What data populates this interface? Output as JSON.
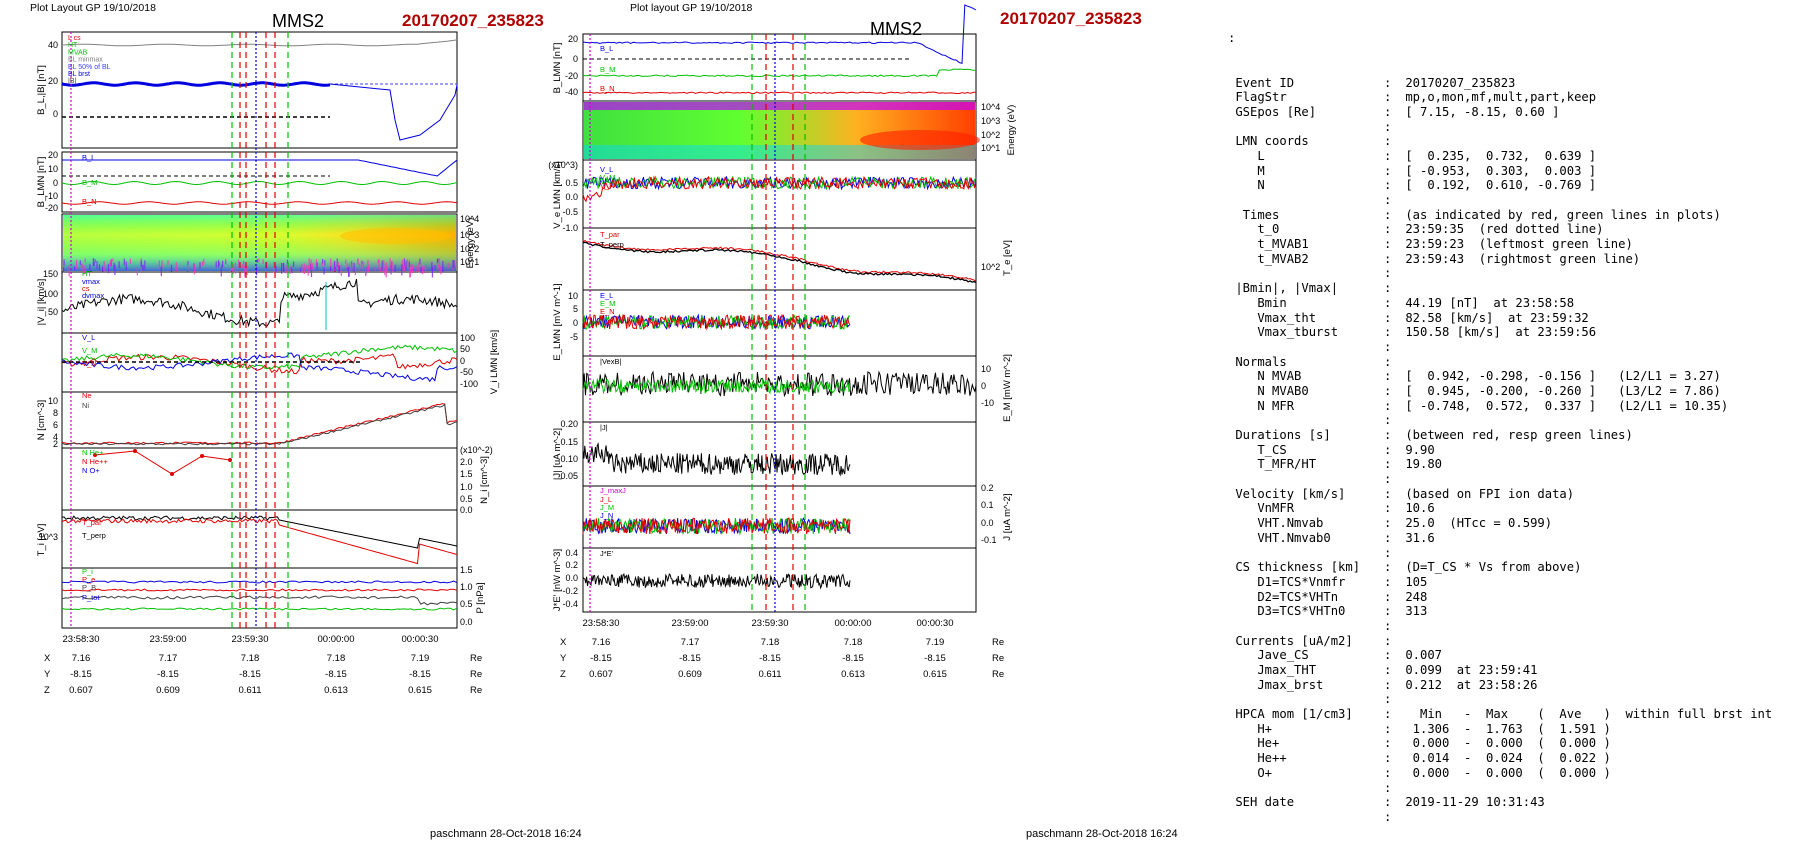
{
  "left_panel": {
    "header": "Plot Layout GP 19/10/2018",
    "title": "MMS2",
    "event": "20170207_235823",
    "footer": "paschmann 28-Oct-2018 16:24",
    "time_ticks": [
      "23:58:30",
      "23:59:00",
      "23:59:30",
      "00:00:00",
      "00:00:30"
    ],
    "ylabels": [
      "B_L,|B| [nT]",
      "B_LMN [nT]",
      "Energy (eV)",
      "|V_i| [km/s]",
      "V_i LMN [km/s]",
      "N [cm^-3]",
      "N_i [cm^-3]",
      "T_i [eV]",
      "P [nPa]"
    ],
    "legends": {
      "b": [
        "L cs",
        "HT",
        "MVAB",
        "BL minmax",
        "BL 50% of BL",
        "BL brst",
        "|B|"
      ],
      "blmn": [
        "B_L",
        "B_M",
        "B_N"
      ],
      "v": [
        "HT",
        "vmax",
        "cs",
        "dvmax"
      ],
      "vlmn": [
        "V_L",
        "V_M",
        "V_N"
      ],
      "n": [
        "Ne",
        "Ni"
      ],
      "nh": [
        "N He+",
        "N He++",
        "N O+"
      ],
      "t": [
        "T_par",
        "T_perp"
      ],
      "p": [
        "P_i",
        "P_e",
        "P_B",
        "P_tot"
      ]
    },
    "ticks": {
      "b": [
        "40",
        "20",
        "0"
      ],
      "blmn": [
        "20",
        "10",
        "0",
        "-10",
        "-20"
      ],
      "e": [
        "10^4",
        "10^3",
        "10^2",
        "10^1"
      ],
      "v": [
        "150",
        "100",
        "50"
      ],
      "vlmn": [
        "100",
        "50",
        "0",
        "-50",
        "-100"
      ],
      "n": [
        "10",
        "8",
        "6",
        "4",
        "2"
      ],
      "nh": [
        "(x10^-2)",
        "2.0",
        "1.5",
        "1.0",
        "0.5",
        "0.0"
      ],
      "t": [
        "10^3"
      ],
      "p": [
        "1.5",
        "1.0",
        "0.5",
        "0.0"
      ]
    },
    "position_table": {
      "X": [
        "7.16",
        "7.17",
        "7.18",
        "7.18",
        "7.19"
      ],
      "Y": [
        "-8.15",
        "-8.15",
        "-8.15",
        "-8.15",
        "-8.15"
      ],
      "Z": [
        "0.607",
        "0.609",
        "0.611",
        "0.613",
        "0.615"
      ],
      "unit": "Re"
    }
  },
  "right_panel": {
    "header": "Plot layout GP 19/10/2018",
    "title": "MMS2",
    "event": "20170207_235823",
    "footer": "paschmann 28-Oct-2018 16:24",
    "time_ticks": [
      "23:58:30",
      "23:59:00",
      "23:59:30",
      "00:00:00",
      "00:00:30"
    ],
    "ylabels": [
      "B_LMN [nT]",
      "Energy (eV)",
      "V_e LMN [km/s]",
      "T_e [eV]",
      "E_LMN [mV m^-1]",
      "E_M [mW m^-2]",
      "|J| [uA m^-2]",
      "J [uA m^-2]",
      "J*E' [nW m^-3]"
    ],
    "legends": {
      "b": [
        "B_L",
        "B_M",
        "B_N"
      ],
      "ve": [
        "V_L",
        "V_M",
        "V_N"
      ],
      "te": [
        "T_par",
        "T_perp"
      ],
      "e": [
        "E_L",
        "E_M",
        "E_N"
      ],
      "vexb": [
        "|VexB|"
      ],
      "j": [
        "|J|"
      ],
      "jlmn": [
        "J_maxJ",
        "J_L",
        "J_M",
        "J_N"
      ],
      "je": [
        "J*E'"
      ]
    },
    "ticks": {
      "b": [
        "20",
        "0",
        "-20",
        "-40"
      ],
      "e": [
        "10^4",
        "10^3",
        "10^2",
        "10^1"
      ],
      "ve": [
        "(x10^3)",
        "0.5",
        "0.0",
        "-0.5",
        "-1.0"
      ],
      "te": [
        "10^2"
      ],
      "el": [
        "10",
        "5",
        "0",
        "-5"
      ],
      "em": [
        "10",
        "0",
        "-10"
      ],
      "j": [
        "0.20",
        "0.15",
        "0.10",
        "0.05"
      ],
      "jlmn": [
        "0.2",
        "0.1",
        "0.0",
        "-0.1"
      ],
      "je": [
        "0.4",
        "0.2",
        "0.0",
        "-0.2",
        "-0.4"
      ]
    },
    "position_table": {
      "X": [
        "7.16",
        "7.17",
        "7.18",
        "7.18",
        "7.19"
      ],
      "Y": [
        "-8.15",
        "-8.15",
        "-8.15",
        "-8.15",
        "-8.15"
      ],
      "Z": [
        "0.607",
        "0.609",
        "0.611",
        "0.613",
        "0.615"
      ],
      "unit": "Re"
    }
  },
  "summary": {
    "top_mark": ":",
    "rows": [
      {
        "k": "Event ID",
        "v": "20170207_235823"
      },
      {
        "k": "FlagStr",
        "v": "mp,o,mon,mf,mult,part,keep"
      },
      {
        "k": "GSEpos [Re]",
        "v": "[ 7.15, -8.15, 0.60 ]"
      },
      {
        "k": "",
        "v": ""
      },
      {
        "k": "LMN coords",
        "v": ""
      },
      {
        "k": "   L",
        "v": "[  0.235,  0.732,  0.639 ]"
      },
      {
        "k": "   M",
        "v": "[ -0.953,  0.303,  0.003 ]"
      },
      {
        "k": "   N",
        "v": "[  0.192,  0.610, -0.769 ]"
      },
      {
        "k": "",
        "v": ""
      },
      {
        "k": " Times",
        "v": "(as indicated by red, green lines in plots)"
      },
      {
        "k": "   t_0",
        "v": "23:59:35  (red dotted line)"
      },
      {
        "k": "   t_MVAB1",
        "v": "23:59:23  (leftmost green line)"
      },
      {
        "k": "   t_MVAB2",
        "v": "23:59:43  (rightmost green line)"
      },
      {
        "k": "",
        "v": ""
      },
      {
        "k": "|Bmin|, |Vmax|",
        "v": ""
      },
      {
        "k": "   Bmin",
        "v": "44.19 [nT]  at 23:58:58"
      },
      {
        "k": "   Vmax_tht",
        "v": "82.58 [km/s]  at 23:59:32"
      },
      {
        "k": "   Vmax_tburst",
        "v": "150.58 [km/s]  at 23:59:56"
      },
      {
        "k": "",
        "v": ""
      },
      {
        "k": "Normals",
        "v": ""
      },
      {
        "k": "   N MVAB",
        "v": "[  0.942, -0.298, -0.156 ]   (L2/L1 = 3.27)"
      },
      {
        "k": "   N MVAB0",
        "v": "[  0.945, -0.200, -0.260 ]   (L3/L2 = 7.86)"
      },
      {
        "k": "   N MFR",
        "v": "[ -0.748,  0.572,  0.337 ]   (L2/L1 = 10.35)"
      },
      {
        "k": "",
        "v": ""
      },
      {
        "k": "Durations [s]",
        "v": "(between red, resp green lines)"
      },
      {
        "k": "   T_CS",
        "v": "9.90"
      },
      {
        "k": "   T_MFR/HT",
        "v": "19.80"
      },
      {
        "k": "",
        "v": ""
      },
      {
        "k": "Velocity [km/s]",
        "v": "(based on FPI ion data)"
      },
      {
        "k": "   VnMFR",
        "v": "10.6"
      },
      {
        "k": "   VHT.Nmvab",
        "v": "25.0  (HTcc = 0.599)"
      },
      {
        "k": "   VHT.Nmvab0",
        "v": "31.6"
      },
      {
        "k": "",
        "v": ""
      },
      {
        "k": "CS thickness [km]",
        "v": "(D=T_CS * Vs from above)"
      },
      {
        "k": "   D1=TCS*Vnmfr",
        "v": "105"
      },
      {
        "k": "   D2=TCS*VHTn",
        "v": "248"
      },
      {
        "k": "   D3=TCS*VHTn0",
        "v": "313"
      },
      {
        "k": "",
        "v": ""
      },
      {
        "k": "Currents [uA/m2]",
        "v": ""
      },
      {
        "k": "   Jave_CS",
        "v": "0.007"
      },
      {
        "k": "   Jmax_THT",
        "v": "0.099  at 23:59:41"
      },
      {
        "k": "   Jmax_brst",
        "v": "0.212  at 23:58:26"
      },
      {
        "k": "",
        "v": ""
      },
      {
        "k": "HPCA mom [1/cm3]",
        "v": "  Min   -  Max    (  Ave   )  within full brst int"
      },
      {
        "k": "   H+",
        "v": " 1.306  -  1.763  (  1.591 )"
      },
      {
        "k": "   He+",
        "v": " 0.000  -  0.000  (  0.000 )"
      },
      {
        "k": "   He++",
        "v": " 0.014  -  0.024  (  0.022 )"
      },
      {
        "k": "   O+",
        "v": " 0.000  -  0.000  (  0.000 )"
      },
      {
        "k": "",
        "v": ""
      },
      {
        "k": "SEH date",
        "v": "2019-11-29 10:31:43"
      },
      {
        "k": "",
        "v": ""
      }
    ]
  },
  "colors": {
    "red": "#e00000",
    "green": "#00c000",
    "blue": "#0000e0",
    "magenta": "#d000d0",
    "title_red": "#b00000"
  }
}
